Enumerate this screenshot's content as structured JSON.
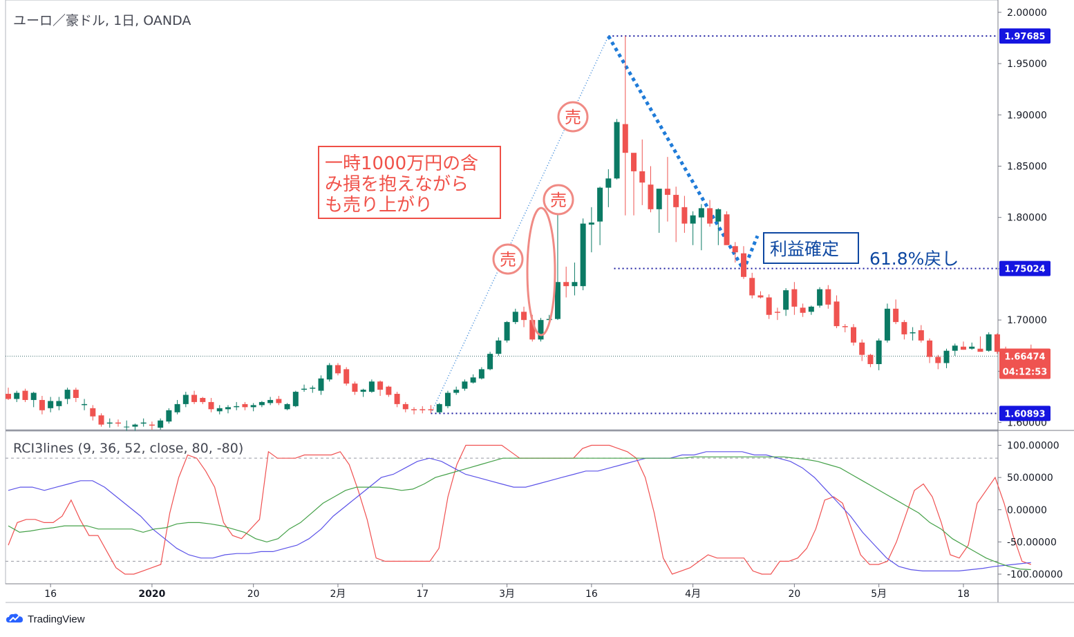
{
  "header": {
    "title": "ユーロ／豪ドル, 1日, OANDA",
    "indicator_title": "RCI3lines (9, 36, 52, close, 80, -80)"
  },
  "branding": {
    "name": "TradingView"
  },
  "annotations": {
    "box_text": [
      "一時1000万円の含",
      "み損を抱えながら",
      "も売り上がり"
    ],
    "sell_label": "売",
    "profit_label": "利益確定",
    "retrace_label": "61.8%戻し"
  },
  "price_labels": {
    "high": "1.97685",
    "retrace": "1.75024",
    "current": "1.66474",
    "countdown": "04:12:53",
    "low": "1.60893"
  },
  "colors": {
    "up": "#26a69a",
    "up_fill": "#0b7a64",
    "down": "#ef5350",
    "annotation_red": "#f0524a",
    "annotation_blue": "#0d47a1",
    "dotted_blue": "#1a1aa0",
    "trend_blue": "#2b7fd6",
    "label_blue": "#1515e0",
    "rci_short": "#f05050",
    "rci_mid": "#5b52e8",
    "rci_long": "#43a047"
  },
  "chart_data": [
    {
      "type": "candlestick",
      "title": "ユーロ／豪ドル, 1日, OANDA",
      "ylim": [
        1.593,
        2.012
      ],
      "y_ticks": [
        "2.00000",
        "1.95000",
        "1.90000",
        "1.85000",
        "1.80000",
        "1.75000",
        "1.70000",
        "1.65000",
        "1.60000"
      ],
      "x_tick_labels": [
        "16",
        "2020",
        "20",
        "2月",
        "17",
        "3月",
        "16",
        "4月",
        "20",
        "5月",
        "18"
      ],
      "x_tick_index": [
        5,
        17,
        29,
        39,
        49,
        59,
        69,
        81,
        93,
        103,
        113
      ],
      "candles": [
        [
          1.628,
          1.634,
          1.622,
          1.623
        ],
        [
          1.623,
          1.631,
          1.62,
          1.629
        ],
        [
          1.631,
          1.633,
          1.62,
          1.622
        ],
        [
          1.622,
          1.63,
          1.615,
          1.629
        ],
        [
          1.622,
          1.626,
          1.608,
          1.612
        ],
        [
          1.614,
          1.625,
          1.61,
          1.621
        ],
        [
          1.616,
          1.625,
          1.612,
          1.621
        ],
        [
          1.623,
          1.634,
          1.618,
          1.632
        ],
        [
          1.632,
          1.634,
          1.62,
          1.624
        ],
        [
          1.617,
          1.623,
          1.612,
          1.618
        ],
        [
          1.614,
          1.617,
          1.602,
          1.606
        ],
        [
          1.607,
          1.609,
          1.596,
          1.598
        ],
        [
          1.599,
          1.604,
          1.595,
          1.6
        ],
        [
          1.6,
          1.603,
          1.596,
          1.599
        ],
        [
          1.596,
          1.602,
          1.592,
          1.596
        ],
        [
          1.596,
          1.599,
          1.592,
          1.598
        ],
        [
          1.599,
          1.604,
          1.596,
          1.6
        ],
        [
          1.598,
          1.601,
          1.593,
          1.597
        ],
        [
          1.595,
          1.604,
          1.593,
          1.602
        ],
        [
          1.601,
          1.614,
          1.599,
          1.612
        ],
        [
          1.61,
          1.622,
          1.608,
          1.618
        ],
        [
          1.618,
          1.63,
          1.615,
          1.627
        ],
        [
          1.627,
          1.631,
          1.618,
          1.62
        ],
        [
          1.624,
          1.625,
          1.618,
          1.62
        ],
        [
          1.62,
          1.624,
          1.61,
          1.613
        ],
        [
          1.611,
          1.617,
          1.608,
          1.614
        ],
        [
          1.613,
          1.617,
          1.609,
          1.615
        ],
        [
          1.615,
          1.62,
          1.612,
          1.616
        ],
        [
          1.618,
          1.62,
          1.612,
          1.615
        ],
        [
          1.615,
          1.619,
          1.611,
          1.617
        ],
        [
          1.617,
          1.621,
          1.615,
          1.62
        ],
        [
          1.619,
          1.625,
          1.617,
          1.622
        ],
        [
          1.623,
          1.626,
          1.617,
          1.619
        ],
        [
          1.613,
          1.619,
          1.612,
          1.618
        ],
        [
          1.616,
          1.631,
          1.615,
          1.63
        ],
        [
          1.632,
          1.637,
          1.63,
          1.633
        ],
        [
          1.633,
          1.636,
          1.629,
          1.634
        ],
        [
          1.631,
          1.646,
          1.627,
          1.643
        ],
        [
          1.642,
          1.658,
          1.64,
          1.656
        ],
        [
          1.656,
          1.658,
          1.646,
          1.648
        ],
        [
          1.652,
          1.654,
          1.636,
          1.638
        ],
        [
          1.638,
          1.64,
          1.627,
          1.63
        ],
        [
          1.63,
          1.633,
          1.625,
          1.632
        ],
        [
          1.63,
          1.642,
          1.629,
          1.64
        ],
        [
          1.64,
          1.641,
          1.626,
          1.632
        ],
        [
          1.635,
          1.636,
          1.625,
          1.627
        ],
        [
          1.628,
          1.63,
          1.615,
          1.618
        ],
        [
          1.618,
          1.62,
          1.61,
          1.613
        ],
        [
          1.613,
          1.615,
          1.608,
          1.612
        ],
        [
          1.613,
          1.616,
          1.609,
          1.612
        ],
        [
          1.613,
          1.617,
          1.609,
          1.612
        ],
        [
          1.61,
          1.619,
          1.609,
          1.618
        ],
        [
          1.616,
          1.631,
          1.614,
          1.629
        ],
        [
          1.629,
          1.635,
          1.627,
          1.632
        ],
        [
          1.633,
          1.642,
          1.631,
          1.64
        ],
        [
          1.639,
          1.647,
          1.638,
          1.644
        ],
        [
          1.643,
          1.654,
          1.642,
          1.652
        ],
        [
          1.652,
          1.669,
          1.651,
          1.667
        ],
        [
          1.667,
          1.683,
          1.665,
          1.68
        ],
        [
          1.68,
          1.699,
          1.678,
          1.698
        ],
        [
          1.698,
          1.711,
          1.696,
          1.708
        ],
        [
          1.708,
          1.713,
          1.693,
          1.7
        ],
        [
          1.7,
          1.705,
          1.679,
          1.681
        ],
        [
          1.681,
          1.702,
          1.679,
          1.7
        ],
        [
          1.7,
          1.705,
          1.699,
          1.701
        ],
        [
          1.701,
          1.822,
          1.7,
          1.737
        ],
        [
          1.737,
          1.752,
          1.722,
          1.733
        ],
        [
          1.733,
          1.756,
          1.724,
          1.737
        ],
        [
          1.733,
          1.799,
          1.729,
          1.794
        ],
        [
          1.793,
          1.81,
          1.766,
          1.795
        ],
        [
          1.796,
          1.83,
          1.773,
          1.829
        ],
        [
          1.829,
          1.847,
          1.81,
          1.838
        ],
        [
          1.838,
          1.896,
          1.837,
          1.893
        ],
        [
          1.891,
          1.977,
          1.802,
          1.863
        ],
        [
          1.863,
          1.861,
          1.802,
          1.845
        ],
        [
          1.845,
          1.876,
          1.812,
          1.834
        ],
        [
          1.832,
          1.85,
          1.805,
          1.808
        ],
        [
          1.808,
          1.827,
          1.785,
          1.828
        ],
        [
          1.828,
          1.859,
          1.796,
          1.822
        ],
        [
          1.822,
          1.83,
          1.776,
          1.81
        ],
        [
          1.81,
          1.821,
          1.785,
          1.794
        ],
        [
          1.794,
          1.806,
          1.773,
          1.802
        ],
        [
          1.8,
          1.813,
          1.768,
          1.809
        ],
        [
          1.809,
          1.817,
          1.791,
          1.794
        ],
        [
          1.796,
          1.809,
          1.773,
          1.808
        ],
        [
          1.803,
          1.806,
          1.774,
          1.773
        ],
        [
          1.772,
          1.776,
          1.756,
          1.766
        ],
        [
          1.765,
          1.772,
          1.74,
          1.742
        ],
        [
          1.741,
          1.746,
          1.721,
          1.724
        ],
        [
          1.724,
          1.728,
          1.721,
          1.722
        ],
        [
          1.722,
          1.725,
          1.701,
          1.705
        ],
        [
          1.708,
          1.712,
          1.7,
          1.707
        ],
        [
          1.71,
          1.731,
          1.704,
          1.729
        ],
        [
          1.73,
          1.737,
          1.705,
          1.713
        ],
        [
          1.712,
          1.716,
          1.703,
          1.707
        ],
        [
          1.708,
          1.714,
          1.705,
          1.713
        ],
        [
          1.714,
          1.732,
          1.712,
          1.73
        ],
        [
          1.73,
          1.734,
          1.711,
          1.715
        ],
        [
          1.718,
          1.724,
          1.692,
          1.694
        ],
        [
          1.694,
          1.696,
          1.688,
          1.693
        ],
        [
          1.693,
          1.696,
          1.675,
          1.678
        ],
        [
          1.678,
          1.681,
          1.66,
          1.666
        ],
        [
          1.666,
          1.667,
          1.654,
          1.657
        ],
        [
          1.657,
          1.682,
          1.651,
          1.68
        ],
        [
          1.68,
          1.716,
          1.678,
          1.711
        ],
        [
          1.711,
          1.72,
          1.696,
          1.698
        ],
        [
          1.698,
          1.7,
          1.681,
          1.686
        ],
        [
          1.687,
          1.693,
          1.68,
          1.688
        ],
        [
          1.69,
          1.695,
          1.678,
          1.68
        ],
        [
          1.68,
          1.682,
          1.658,
          1.664
        ],
        [
          1.664,
          1.666,
          1.652,
          1.658
        ],
        [
          1.658,
          1.672,
          1.653,
          1.67
        ],
        [
          1.67,
          1.677,
          1.665,
          1.675
        ],
        [
          1.674,
          1.679,
          1.671,
          1.671
        ],
        [
          1.672,
          1.678,
          1.671,
          1.674
        ],
        [
          1.672,
          1.684,
          1.67,
          1.669
        ],
        [
          1.67,
          1.688,
          1.669,
          1.686
        ],
        [
          1.686,
          1.687,
          1.667,
          1.669
        ],
        [
          1.67,
          1.674,
          1.667,
          1.668
        ],
        [
          1.669,
          1.672,
          1.66,
          1.662
        ],
        [
          1.662,
          1.668,
          1.66,
          1.666
        ],
        [
          1.665,
          1.676,
          1.662,
          1.6647
        ]
      ],
      "events": {
        "low": "1.60893",
        "high": "1.97685",
        "retracement": "1.75024",
        "current": "1.66474"
      }
    },
    {
      "type": "line",
      "title": "RCI3lines (9, 36, 52, close, 80, -80)",
      "ylim": [
        -115,
        122
      ],
      "y_ticks": [
        "100.00000",
        "50.00000",
        "0.00000",
        "-50.00000",
        "-100.00000"
      ],
      "levels": [
        80,
        -80
      ],
      "series": [
        {
          "values": [
            -55,
            -20,
            -15,
            -15,
            -20,
            -20,
            -10,
            15,
            -15,
            -40,
            -40,
            -65,
            -90,
            -100,
            -100,
            -95,
            -90,
            -85,
            -5,
            50,
            85,
            80,
            60,
            35,
            -20,
            -40,
            -45,
            -30,
            -15,
            90,
            80,
            80,
            80,
            85,
            85,
            85,
            85,
            90,
            70,
            30,
            -15,
            -75,
            -80,
            -80,
            -80,
            -80,
            -80,
            -80,
            -60,
            20,
            70,
            100,
            100,
            100,
            100,
            100,
            90,
            80,
            80,
            80,
            80,
            80,
            80,
            80,
            95,
            100,
            100,
            100,
            95,
            90,
            80,
            50,
            -5,
            -75,
            -100,
            -95,
            -90,
            -80,
            -70,
            -75,
            -75,
            -75,
            -75,
            -95,
            -100,
            -100,
            -80,
            -80,
            -75,
            -60,
            -30,
            15,
            20,
            10,
            -30,
            -70,
            -85,
            -85,
            -80,
            -50,
            -10,
            30,
            40,
            20,
            -20,
            -70,
            -75,
            -55,
            10,
            30,
            50,
            10,
            -40,
            -80,
            -85
          ]
        },
        {
          "values": [
            30,
            35,
            35,
            30,
            35,
            40,
            45,
            45,
            35,
            20,
            5,
            -10,
            -30,
            -45,
            -60,
            -70,
            -75,
            -75,
            -70,
            -68,
            -68,
            -65,
            -65,
            -60,
            -55,
            -45,
            -30,
            -10,
            5,
            20,
            35,
            50,
            55,
            65,
            75,
            80,
            75,
            65,
            55,
            50,
            45,
            40,
            35,
            35,
            40,
            45,
            50,
            55,
            60,
            60,
            65,
            70,
            75,
            80,
            80,
            80,
            85,
            85,
            90,
            90,
            90,
            90,
            85,
            85,
            80,
            75,
            65,
            50,
            30,
            10,
            -10,
            -35,
            -55,
            -75,
            -88,
            -93,
            -95,
            -95,
            -95,
            -95,
            -93,
            -91,
            -88,
            -86,
            -84,
            -82
          ]
        },
        {
          "values": [
            -25,
            -35,
            -33,
            -30,
            -28,
            -25,
            -25,
            -25,
            -30,
            -30,
            -30,
            -30,
            -35,
            -30,
            -28,
            -22,
            -20,
            -20,
            -22,
            -25,
            -30,
            -35,
            -45,
            -50,
            -45,
            -30,
            -20,
            -5,
            10,
            20,
            30,
            35,
            35,
            35,
            33,
            30,
            32,
            40,
            50,
            55,
            60,
            65,
            70,
            75,
            80,
            80,
            80,
            80,
            80,
            80,
            80,
            80,
            80,
            80,
            80,
            80,
            80,
            80,
            80,
            80,
            80,
            82,
            82,
            82,
            82,
            82,
            82,
            82,
            82,
            82,
            80,
            78,
            75,
            70,
            65,
            55,
            45,
            35,
            25,
            15,
            5,
            -5,
            -20,
            -30,
            -45,
            -55,
            -65,
            -75,
            -82,
            -88,
            -92,
            -93
          ]
        }
      ]
    }
  ]
}
